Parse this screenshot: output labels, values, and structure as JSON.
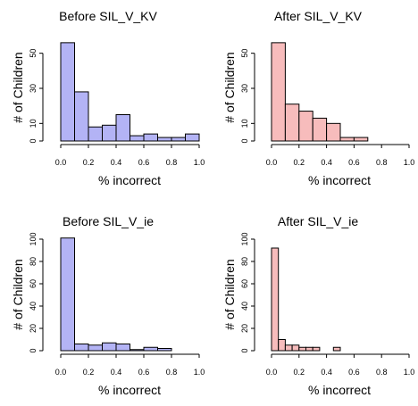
{
  "chart_data": [
    {
      "type": "bar",
      "title": "Before SIL_V_KV",
      "xlabel": "% incorrect",
      "ylabel": "# of Children",
      "color": "#b3b3f5",
      "bin_edges": [
        0.0,
        0.1,
        0.2,
        0.3,
        0.4,
        0.5,
        0.6,
        0.7,
        0.8,
        0.9,
        1.0
      ],
      "values": [
        56,
        28,
        8,
        9,
        15,
        3,
        4,
        2,
        2,
        4
      ],
      "xlim": [
        0,
        1
      ],
      "ylim": [
        0,
        60
      ],
      "xticks": [
        "0.0",
        "0.2",
        "0.4",
        "0.6",
        "0.8",
        "1.0"
      ],
      "yticks": [
        "0",
        "10",
        "30",
        "50"
      ]
    },
    {
      "type": "bar",
      "title": "After SIL_V_KV",
      "xlabel": "% incorrect",
      "ylabel": "# of Children",
      "color": "#f7bcbc",
      "bin_edges": [
        0.0,
        0.1,
        0.2,
        0.3,
        0.4,
        0.5,
        0.6,
        0.7
      ],
      "values": [
        56,
        21,
        17,
        13,
        10,
        2,
        2
      ],
      "xlim": [
        0,
        1
      ],
      "ylim": [
        0,
        60
      ],
      "xticks": [
        "0.0",
        "0.2",
        "0.4",
        "0.6",
        "0.8",
        "1.0"
      ],
      "yticks": [
        "0",
        "10",
        "30",
        "50"
      ]
    },
    {
      "type": "bar",
      "title": "Before SIL_V_ie",
      "xlabel": "% incorrect",
      "ylabel": "# of Children",
      "color": "#b3b3f5",
      "bin_edges": [
        0.0,
        0.1,
        0.2,
        0.3,
        0.4,
        0.5,
        0.6,
        0.7,
        0.8
      ],
      "values": [
        101,
        6,
        5,
        7,
        6,
        1,
        3,
        2
      ],
      "xlim": [
        0,
        1
      ],
      "ylim": [
        0,
        100
      ],
      "xticks": [
        "0.0",
        "0.2",
        "0.4",
        "0.6",
        "0.8",
        "1.0"
      ],
      "yticks": [
        "0",
        "20",
        "40",
        "60",
        "80",
        "100"
      ]
    },
    {
      "type": "bar",
      "title": "After SIL_V_ie",
      "xlabel": "% incorrect",
      "ylabel": "# of Children",
      "color": "#f7bcbc",
      "bin_edges": [
        0.0,
        0.05,
        0.1,
        0.15,
        0.2,
        0.25,
        0.3,
        0.35,
        0.4,
        0.45,
        0.5
      ],
      "values": [
        92,
        10,
        5,
        5,
        3,
        3,
        3,
        0,
        0,
        3
      ],
      "xlim": [
        0,
        1
      ],
      "ylim": [
        0,
        100
      ],
      "xticks": [
        "0.0",
        "0.2",
        "0.4",
        "0.6",
        "0.8",
        "1.0"
      ],
      "yticks": [
        "0",
        "20",
        "40",
        "60",
        "80",
        "100"
      ]
    }
  ]
}
